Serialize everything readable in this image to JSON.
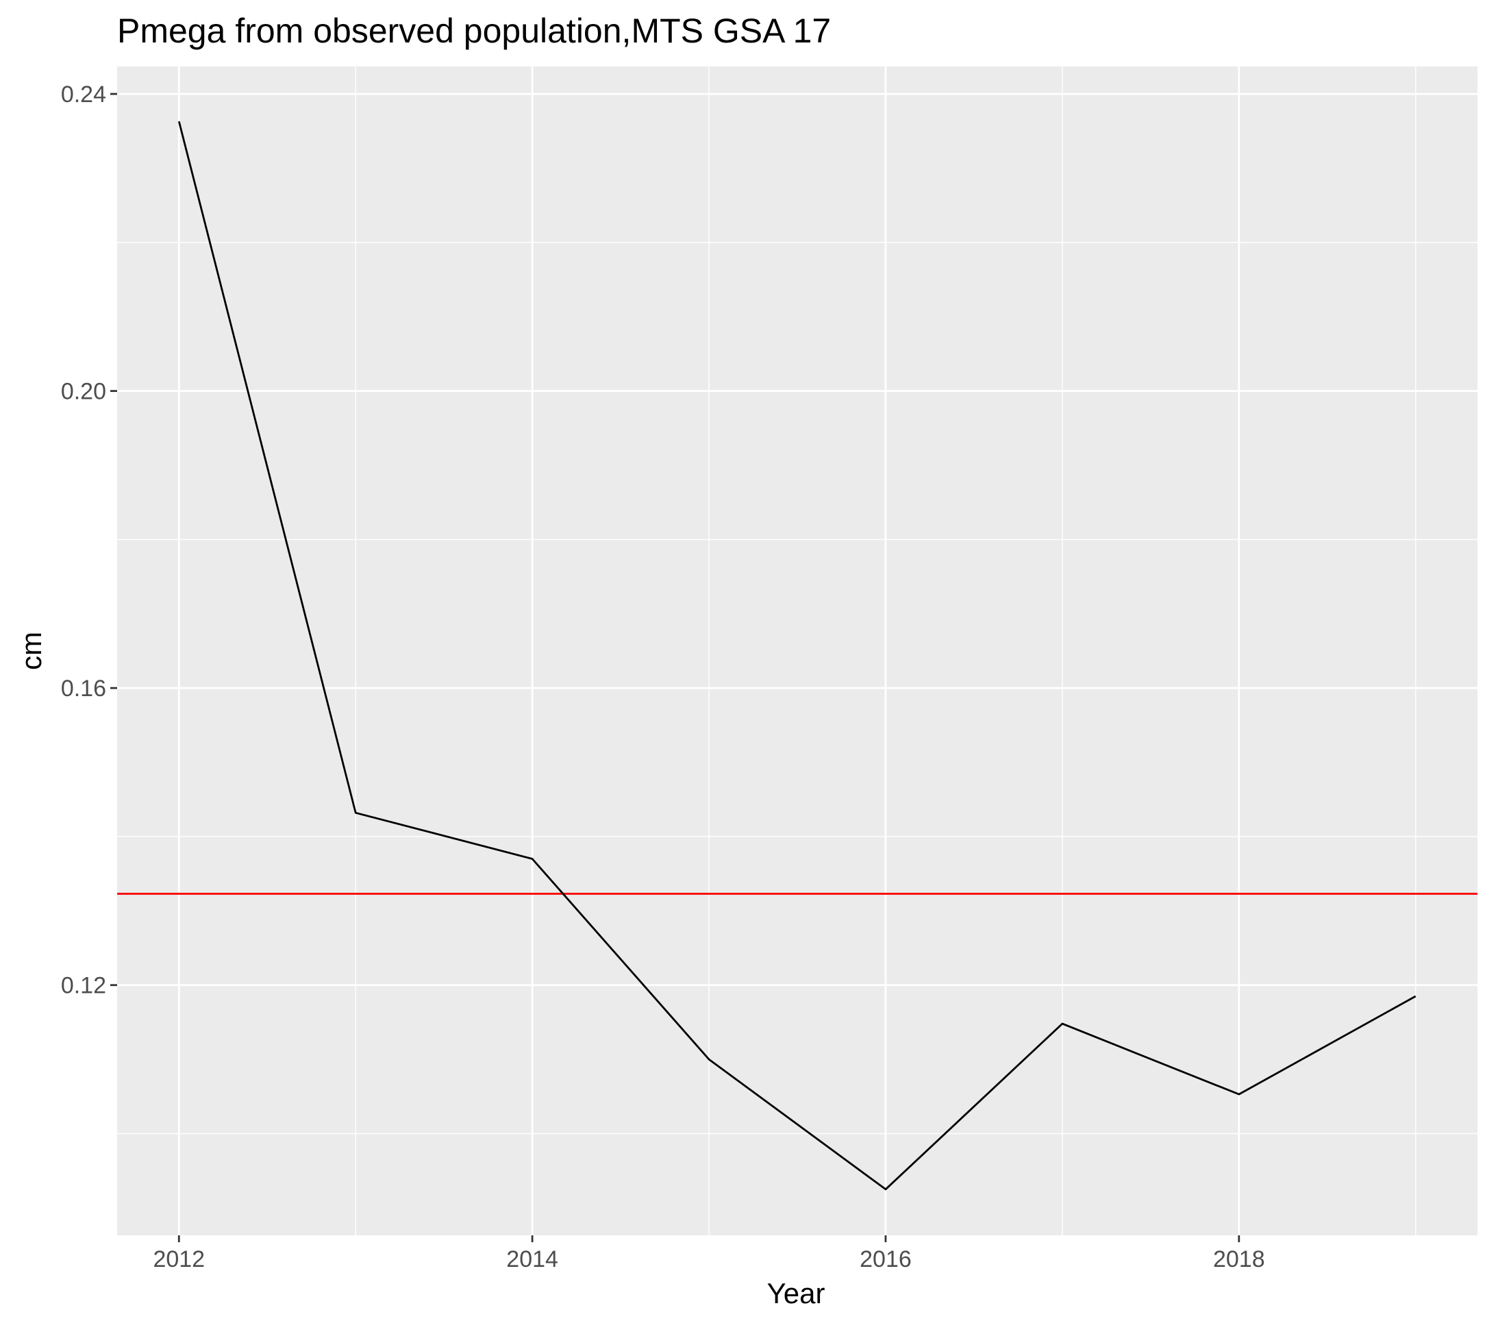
{
  "chart_data": {
    "type": "line",
    "title": "Pmega from observed population,MTS GSA 17",
    "xlabel": "Year",
    "ylabel": "cm",
    "xlim": [
      2011.65,
      2019.35
    ],
    "ylim": [
      0.0863,
      0.2437
    ],
    "x_ticks": [
      2012,
      2014,
      2016,
      2018
    ],
    "x_tick_labels": [
      "2012",
      "2014",
      "2016",
      "2018"
    ],
    "y_ticks": [
      0.12,
      0.16,
      0.2,
      0.24
    ],
    "y_tick_labels": [
      "0.12",
      "0.16",
      "0.20",
      "0.24"
    ],
    "grid": true,
    "legend": "none",
    "series": [
      {
        "color": "#000000",
        "x": [
          2012,
          2013,
          2014,
          2015,
          2016,
          2017,
          2018,
          2019
        ],
        "y": [
          0.2363,
          0.1432,
          0.137,
          0.11,
          0.0925,
          0.1148,
          0.1053,
          0.1185
        ]
      }
    ],
    "reference_lines": [
      {
        "orientation": "horizontal",
        "y": 0.1323,
        "color": "#ff0000"
      }
    ],
    "panel_background": "#ebebeb",
    "grid_color": "#ffffff"
  }
}
